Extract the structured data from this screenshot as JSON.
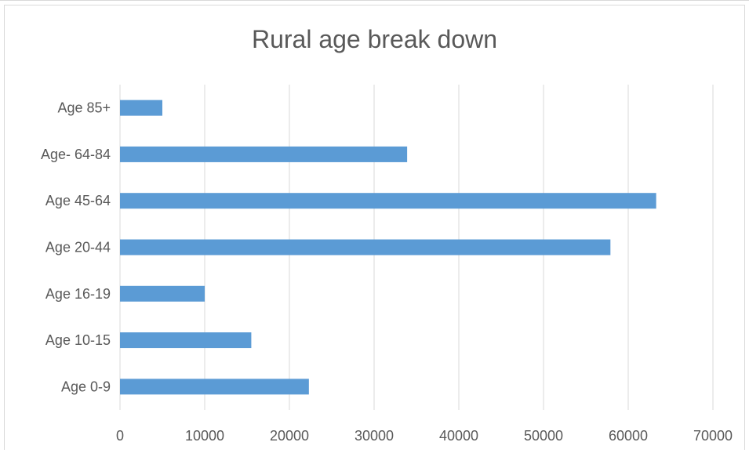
{
  "chart_data": {
    "type": "bar",
    "orientation": "horizontal",
    "title": "Rural age break down",
    "categories": [
      "Age 0-9",
      "Age 10-15",
      "Age 16-19",
      "Age 20-44",
      "Age 45-64",
      "Age- 64-84",
      "Age 85+"
    ],
    "values": [
      22300,
      15500,
      10000,
      57900,
      63300,
      33900,
      5000
    ],
    "xlim": [
      0,
      70000
    ],
    "xticks": [
      "0",
      "10000",
      "20000",
      "30000",
      "40000",
      "50000",
      "60000",
      "70000"
    ],
    "grid": true,
    "legend": "none",
    "bar_color": "#5b9bd5",
    "grid_color": "#d9d9d9"
  }
}
